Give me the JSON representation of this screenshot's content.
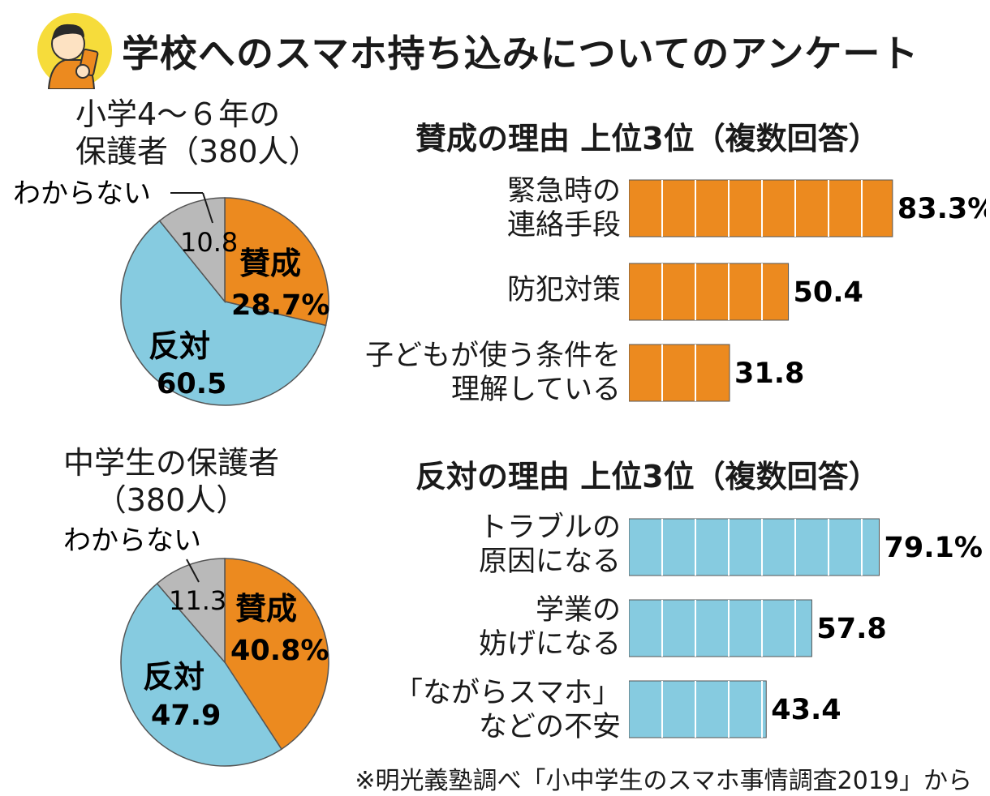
{
  "title": "学校へのスマホ持ち込みについてのアンケート",
  "source": "※明光義塾調べ「小中学生のスマホ事情調査2019」から",
  "colors": {
    "approve": "#ec8a1f",
    "oppose": "#86cbe0",
    "unknown": "#b9b9b9",
    "bar_divider": "#ffffff"
  },
  "icon": "child-with-smartphone-icon",
  "chart_data": [
    {
      "type": "pie",
      "title_lines": [
        "小学4～６年の",
        "保護者（380人）"
      ],
      "slices": [
        {
          "label": "賛成",
          "value": 28.7,
          "text": "28.7%",
          "color": "#ec8a1f"
        },
        {
          "label": "反対",
          "value": 60.5,
          "text": "60.5",
          "color": "#86cbe0"
        },
        {
          "label": "わからない",
          "value": 10.8,
          "text": "10.8",
          "color": "#b9b9b9"
        }
      ]
    },
    {
      "type": "bar",
      "orientation": "horizontal",
      "title": "賛成の理由 上位3位（複数回答）",
      "categories": [
        [
          "緊急時の",
          "連絡手段"
        ],
        [
          "防犯対策"
        ],
        [
          "子どもが使う条件を",
          "理解している"
        ]
      ],
      "values": [
        83.3,
        50.4,
        31.8
      ],
      "value_labels": [
        "83.3%",
        "50.4",
        "31.8"
      ],
      "color": "#ec8a1f",
      "xlim": [
        0,
        100
      ]
    },
    {
      "type": "pie",
      "title_lines": [
        "中学生の保護者",
        "（380人）"
      ],
      "slices": [
        {
          "label": "賛成",
          "value": 40.8,
          "text": "40.8%",
          "color": "#ec8a1f"
        },
        {
          "label": "反対",
          "value": 47.9,
          "text": "47.9",
          "color": "#86cbe0"
        },
        {
          "label": "わからない",
          "value": 11.3,
          "text": "11.3",
          "color": "#b9b9b9"
        }
      ]
    },
    {
      "type": "bar",
      "orientation": "horizontal",
      "title": "反対の理由 上位3位（複数回答）",
      "categories": [
        [
          "トラブルの",
          "原因になる"
        ],
        [
          "学業の",
          "妨げになる"
        ],
        [
          "「ながらスマホ」",
          "などの不安"
        ]
      ],
      "values": [
        79.1,
        57.8,
        43.4
      ],
      "value_labels": [
        "79.1%",
        "57.8",
        "43.4"
      ],
      "color": "#86cbe0",
      "xlim": [
        0,
        100
      ]
    }
  ]
}
